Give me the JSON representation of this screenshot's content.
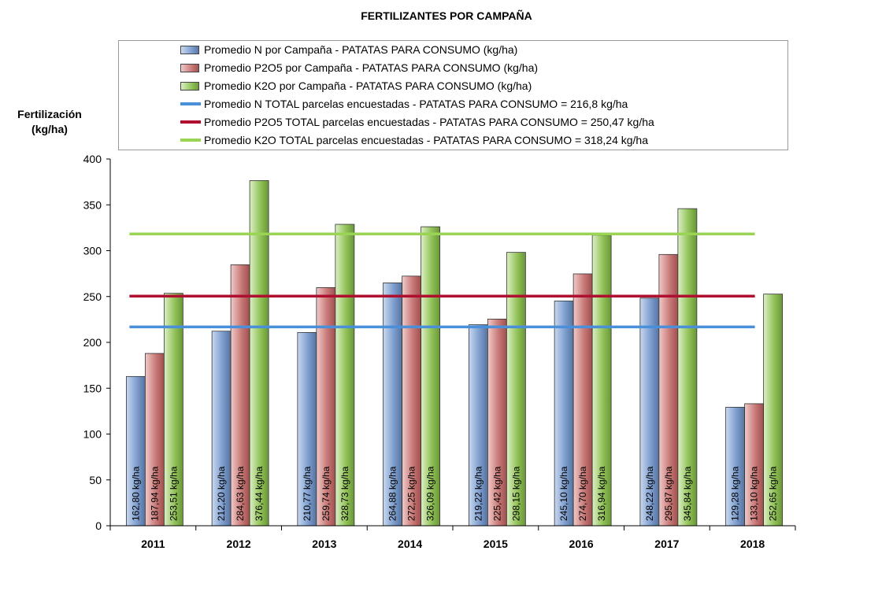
{
  "chart_data": {
    "type": "bar",
    "title": "FERTILIZANTES POR CAMPAÑA",
    "ylabel": "Fertilización (kg/ha)",
    "xlabel": "",
    "categories": [
      "2011",
      "2012",
      "2013",
      "2014",
      "2015",
      "2016",
      "2017",
      "2018"
    ],
    "ylim": [
      0,
      400
    ],
    "yticks": [
      "0",
      "50",
      "100",
      "150",
      "200",
      "250",
      "300",
      "350",
      "400"
    ],
    "grid": false,
    "legend_position": "top",
    "series": [
      {
        "name": "Promedio N por Campaña - PATATAS PARA CONSUMO (kg/ha)",
        "color": "#7f9fcf",
        "values": [
          162.8,
          212.2,
          210.77,
          264.88,
          219.22,
          245.1,
          248.22,
          129.28
        ],
        "labels": [
          "162,80 kg/ha",
          "212,20 kg/ha",
          "210,77 kg/ha",
          "264,88 kg/ha",
          "219,22 kg/ha",
          "245,10 kg/ha",
          "248,22 kg/ha",
          "129,28 kg/ha"
        ]
      },
      {
        "name": "Promedio P2O5 por Campaña - PATATAS PARA CONSUMO (kg/ha)",
        "color": "#c97b79",
        "values": [
          187.94,
          284.63,
          259.74,
          272.25,
          225.42,
          274.7,
          295.87,
          133.1
        ],
        "labels": [
          "187,94 kg/ha",
          "284,63 kg/ha",
          "259,74 kg/ha",
          "272,25 kg/ha",
          "225,42 kg/ha",
          "274,70 kg/ha",
          "295,87 kg/ha",
          "133,10 kg/ha"
        ]
      },
      {
        "name": "Promedio K2O por Campaña - PATATAS PARA CONSUMO (kg/ha)",
        "color": "#93c35a",
        "values": [
          253.51,
          376.44,
          328.73,
          326.09,
          298.15,
          316.94,
          345.84,
          252.65
        ],
        "labels": [
          "253,51 kg/ha",
          "376,44 kg/ha",
          "328,73 kg/ha",
          "326,09 kg/ha",
          "298,15 kg/ha",
          "316,94 kg/ha",
          "345,84 kg/ha",
          "252,65 kg/ha"
        ]
      }
    ],
    "reference_lines": [
      {
        "name": "Promedio N TOTAL parcelas encuestadas - PATATAS PARA CONSUMO = 216,8 kg/ha",
        "value": 216.8,
        "color": "#4a8fd9"
      },
      {
        "name": "Promedio P2O5 TOTAL parcelas encuestadas - PATATAS PARA CONSUMO = 250,47 kg/ha",
        "value": 250.47,
        "color": "#b01030"
      },
      {
        "name": "Promedio K2O TOTAL parcelas encuestadas - PATATAS PARA CONSUMO  = 318,24 kg/ha",
        "value": 318.24,
        "color": "#9ad454"
      }
    ]
  }
}
